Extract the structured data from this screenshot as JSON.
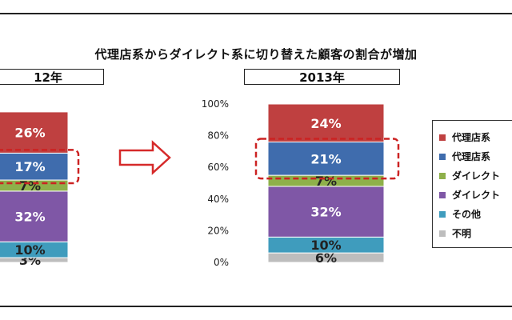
{
  "title": "代理店系からダイレクト系に切り替えた顧客の割合が増加",
  "colors": {
    "arrow": "#d62a2a",
    "highlight": "#cc2222"
  },
  "chart_data": [
    {
      "type": "bar",
      "subtype": "stacked-100",
      "title": "12年",
      "categories": [
        "12年"
      ],
      "series": [
        {
          "name": "不明",
          "values": [
            3
          ],
          "label": "3%",
          "color": "#bdbdbd",
          "label_color": "#222222"
        },
        {
          "name": "その他",
          "values": [
            10
          ],
          "label": "10%",
          "color": "#3f9cbd",
          "label_color": "#222222"
        },
        {
          "name": "ダイレクト",
          "values": [
            32
          ],
          "label": "32%",
          "color": "#7f57a6",
          "label_color": "#ffffff"
        },
        {
          "name": "ダイレクト",
          "values": [
            7
          ],
          "label": "7%",
          "color": "#8eb04a",
          "label_color": "#222222"
        },
        {
          "name": "代理店系",
          "values": [
            17
          ],
          "label": "17%",
          "color": "#3f6cad",
          "label_color": "#ffffff"
        },
        {
          "name": "代理店系",
          "values": [
            26
          ],
          "label": "26%",
          "color": "#bf4040",
          "label_color": "#ffffff"
        }
      ],
      "highlight_series": "代理店系 (2)"
    },
    {
      "type": "bar",
      "subtype": "stacked-100",
      "title": "2013年",
      "categories": [
        "2013年"
      ],
      "ylim": [
        0,
        100
      ],
      "yticks": [
        "0%",
        "20%",
        "40%",
        "60%",
        "80%",
        "100%"
      ],
      "series": [
        {
          "name": "不明",
          "values": [
            6
          ],
          "label": "6%",
          "color": "#bdbdbd",
          "label_color": "#222222"
        },
        {
          "name": "その他",
          "values": [
            10
          ],
          "label": "10%",
          "color": "#3f9cbd",
          "label_color": "#222222"
        },
        {
          "name": "ダイレクト",
          "values": [
            32
          ],
          "label": "32%",
          "color": "#7f57a6",
          "label_color": "#ffffff"
        },
        {
          "name": "ダイレクト",
          "values": [
            7
          ],
          "label": "7%",
          "color": "#8eb04a",
          "label_color": "#222222"
        },
        {
          "name": "代理店系",
          "values": [
            21
          ],
          "label": "21%",
          "color": "#3f6cad",
          "label_color": "#ffffff"
        },
        {
          "name": "代理店系",
          "values": [
            24
          ],
          "label": "24%",
          "color": "#bf4040",
          "label_color": "#ffffff"
        }
      ],
      "highlight_series": "代理店系 (2)"
    }
  ],
  "legend": {
    "placement": "right",
    "items": [
      {
        "label": "代理店系",
        "color": "#bf4040"
      },
      {
        "label": "代理店系",
        "color": "#3f6cad"
      },
      {
        "label": "ダイレクト",
        "color": "#8eb04a"
      },
      {
        "label": "ダイレクト",
        "color": "#7f57a6"
      },
      {
        "label": "その他",
        "color": "#3f9cbd"
      },
      {
        "label": "不明",
        "color": "#bdbdbd"
      }
    ]
  }
}
